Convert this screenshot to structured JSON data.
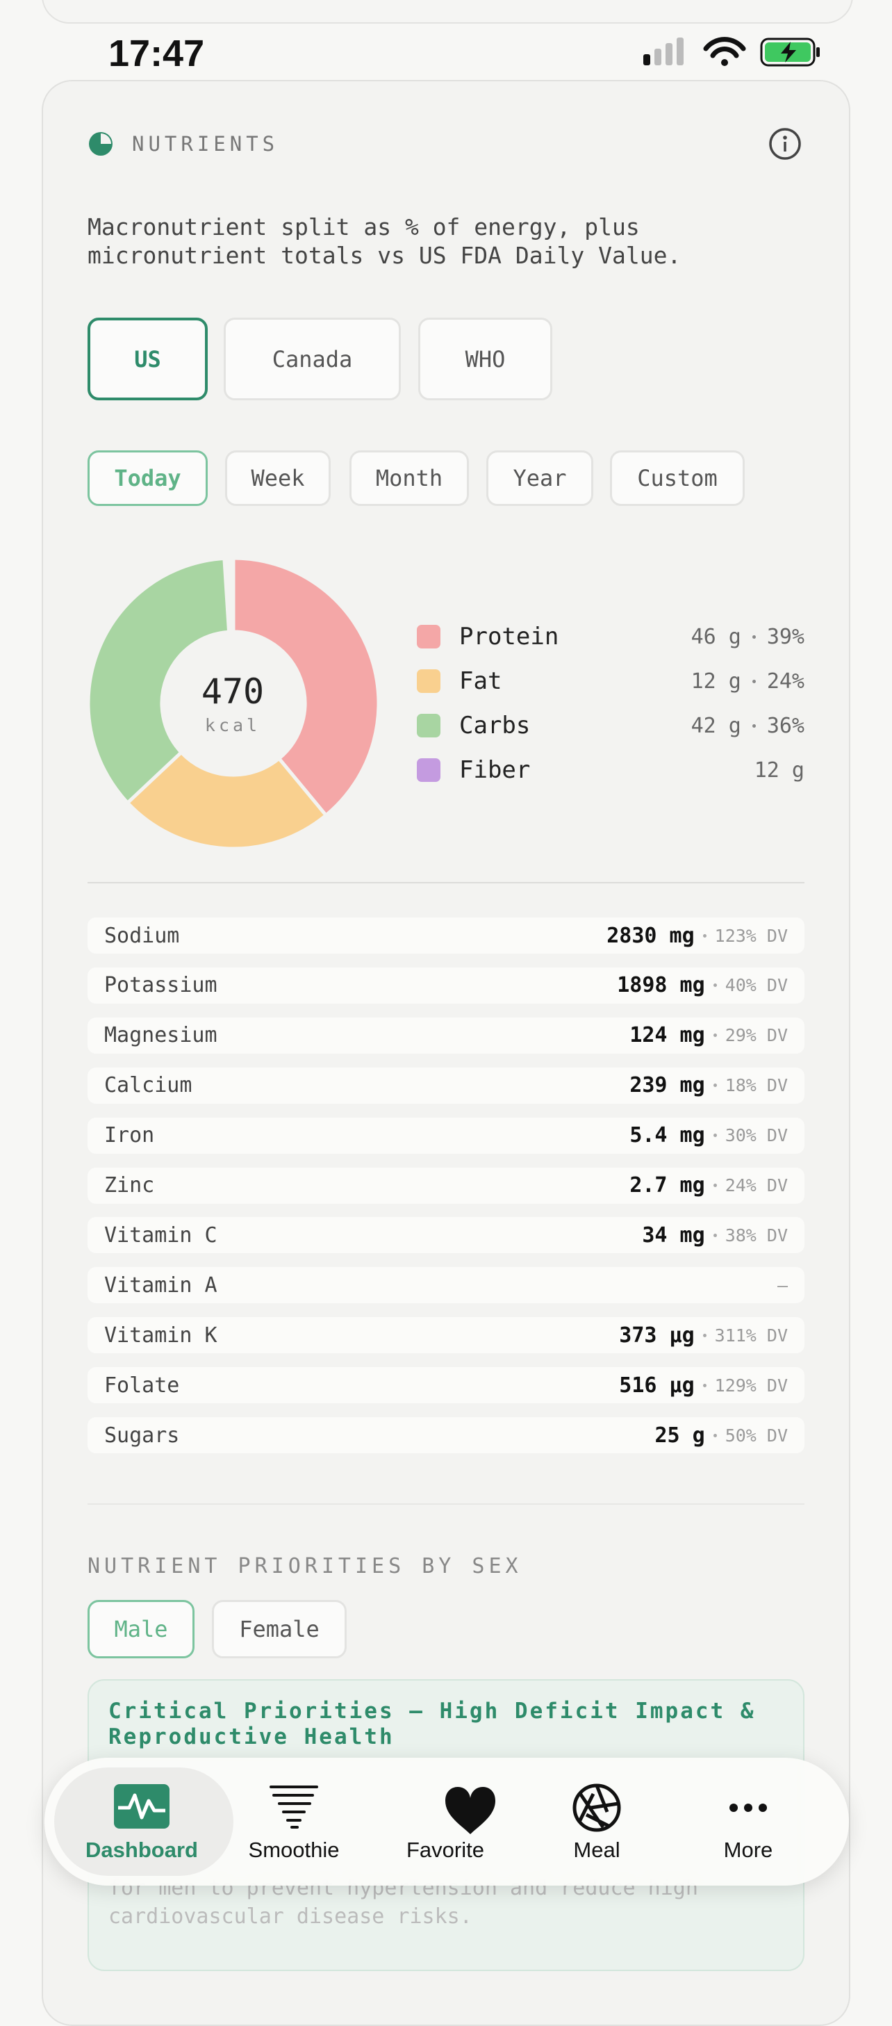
{
  "status_bar": {
    "time": "17:47"
  },
  "header": {
    "title": "NUTRIENTS"
  },
  "description": [
    "Macronutrient split as % of energy, plus",
    "micronutrient totals vs US FDA Daily Value."
  ],
  "regions": {
    "options": [
      "US",
      "Canada",
      "WHO"
    ],
    "selected": 0
  },
  "periods": {
    "options": [
      "Today",
      "Week",
      "Month",
      "Year",
      "Custom"
    ],
    "selected": 0
  },
  "energy": {
    "value": 470,
    "unit": "kcal"
  },
  "macros": [
    {
      "name": "Protein",
      "amount": "46 g",
      "percent": 39,
      "percent_label": "39%",
      "color": "#f4a7a7"
    },
    {
      "name": "Fat",
      "amount": "12 g",
      "percent": 24,
      "percent_label": "24%",
      "color": "#f9d08f"
    },
    {
      "name": "Carbs",
      "amount": "42 g",
      "percent": 36,
      "percent_label": "36%",
      "color": "#a8d5a2"
    },
    {
      "name": "Fiber",
      "amount": "12 g",
      "color": "#c49be0"
    }
  ],
  "micronutrients": [
    {
      "name": "Sodium",
      "amount": "2830 mg",
      "dv": "123% DV"
    },
    {
      "name": "Potassium",
      "amount": "1898 mg",
      "dv": "40% DV"
    },
    {
      "name": "Magnesium",
      "amount": "124 mg",
      "dv": "29% DV"
    },
    {
      "name": "Calcium",
      "amount": "239 mg",
      "dv": "18% DV"
    },
    {
      "name": "Iron",
      "amount": "5.4 mg",
      "dv": "30% DV"
    },
    {
      "name": "Zinc",
      "amount": "2.7 mg",
      "dv": "24% DV"
    },
    {
      "name": "Vitamin C",
      "amount": "34 mg",
      "dv": "38% DV"
    },
    {
      "name": "Vitamin A",
      "dv": "—"
    },
    {
      "name": "Vitamin K",
      "amount": "373 µg",
      "dv": "311% DV"
    },
    {
      "name": "Folate",
      "amount": "516 µg",
      "dv": "129% DV"
    },
    {
      "name": "Sugars",
      "amount": "25 g",
      "dv": "50% DV"
    }
  ],
  "priorities": {
    "title": "NUTRIENT PRIORITIES BY SEX",
    "options": [
      "Male",
      "Female"
    ],
    "selected": 0,
    "card": {
      "title_lines": [
        "Critical Priorities — High Deficit Impact &",
        "Reproductive Health"
      ],
      "text_lines": [
        "for men to prevent hypertension and reduce high",
        "cardiovascular disease risks."
      ]
    }
  },
  "nav": {
    "items": [
      "Dashboard",
      "Smoothie",
      "Favorite",
      "Meal",
      "More"
    ],
    "active": 0
  }
}
